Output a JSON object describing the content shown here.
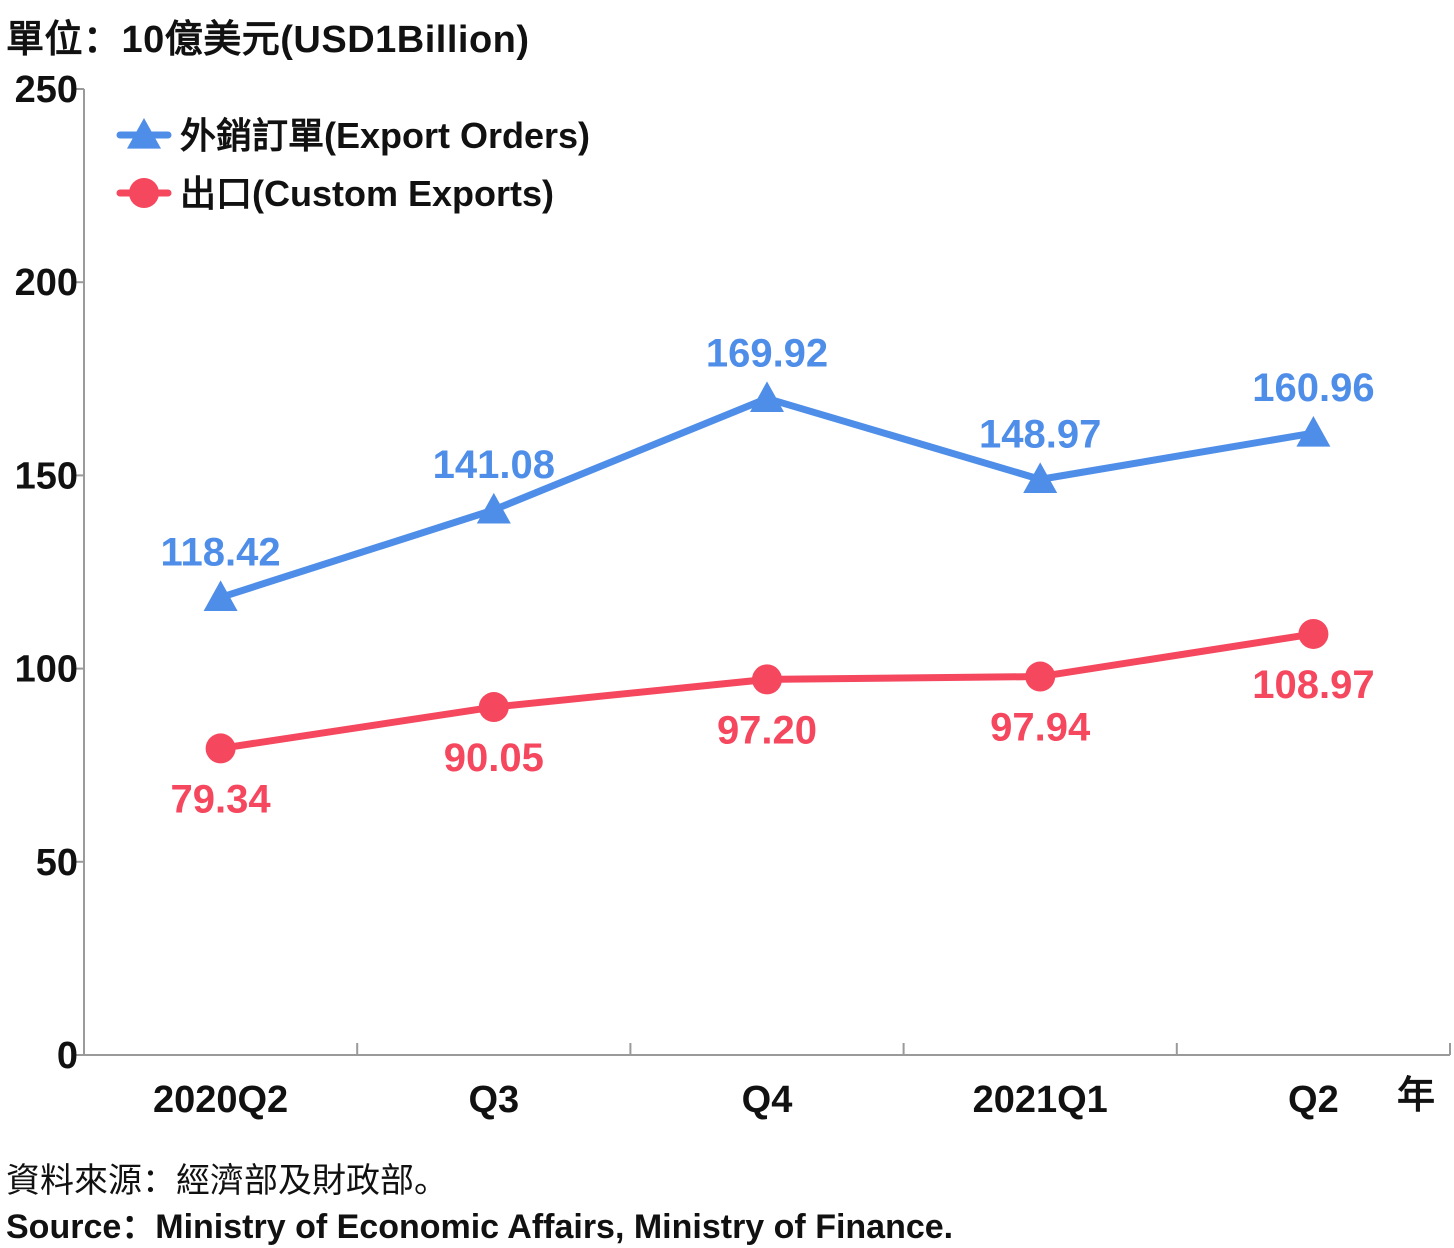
{
  "unit_title": "單位：10億美元(USD1Billion)",
  "source_zh": "資料來源：經濟部及財政部。",
  "source_en": "Source：Ministry of Economic Affairs, Ministry of Finance.",
  "chart_data": {
    "type": "line",
    "categories": [
      "2020Q2",
      "Q3",
      "Q4",
      "2021Q1",
      "Q2"
    ],
    "x_unit_label": "年",
    "ylim": [
      0,
      250
    ],
    "y_ticks": [
      0,
      50,
      100,
      150,
      200,
      250
    ],
    "grid": false,
    "legend_position": "top-left",
    "series": [
      {
        "name": "外銷訂單(Export Orders)",
        "values": [
          118.42,
          141.08,
          169.92,
          148.97,
          160.96
        ],
        "labels": [
          "118.42",
          "141.08",
          "169.92",
          "148.97",
          "160.96"
        ],
        "color": "#4f8ee8",
        "marker": "triangle"
      },
      {
        "name": "出口(Custom Exports)",
        "values": [
          79.34,
          90.05,
          97.2,
          97.94,
          108.97
        ],
        "labels": [
          "79.34",
          "90.05",
          "97.20",
          "97.94",
          "108.97"
        ],
        "color": "#f5475e",
        "marker": "circle"
      }
    ]
  }
}
